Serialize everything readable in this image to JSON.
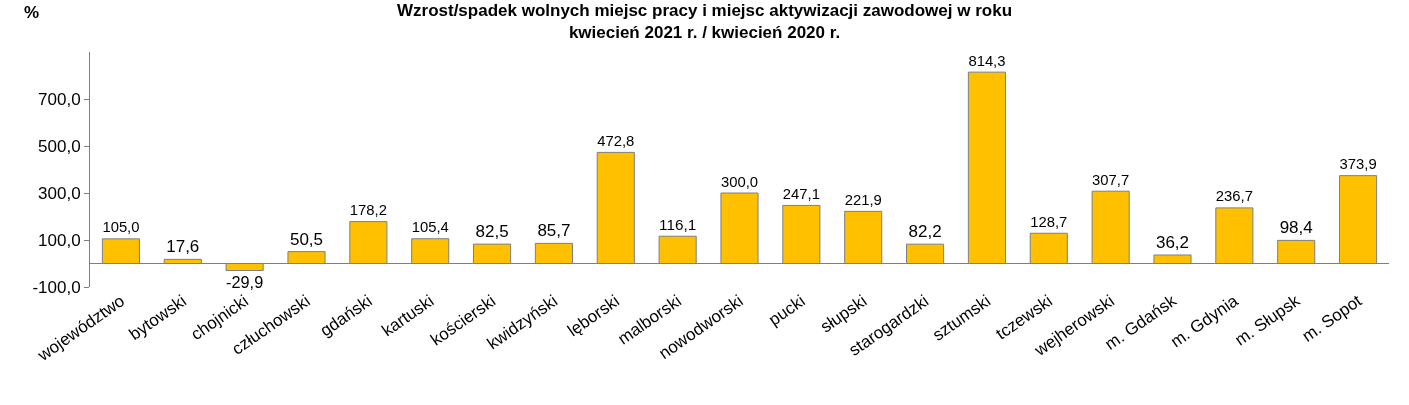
{
  "chart_data": {
    "type": "bar",
    "title": "Wzrost/spadek wolnych miejsc pracy i miejsc aktywizacji zawodowej w roku\nkwiecień 2021 r. / kwiecień 2020 r.",
    "ylabel": "%",
    "categories": [
      "województwo",
      "bytowski",
      "chojnicki",
      "człuchowski",
      "gdański",
      "kartuski",
      "kościerski",
      "kwidzyński",
      "lęborski",
      "malborski",
      "nowodworski",
      "pucki",
      "słupski",
      "starogardzki",
      "sztumski",
      "tczewski",
      "wejherowski",
      "m. Gdańsk",
      "m. Gdynia",
      "m. Słupsk",
      "m. Sopot"
    ],
    "values": [
      105.0,
      17.6,
      -29.9,
      50.5,
      178.2,
      105.4,
      82.5,
      85.7,
      472.8,
      116.1,
      300.0,
      247.1,
      221.9,
      82.2,
      814.3,
      128.7,
      307.7,
      36.2,
      236.7,
      98.4,
      373.9
    ],
    "value_labels": [
      "105,0",
      "17,6",
      "-29,9",
      "50,5",
      "178,2",
      "105,4",
      "82,5",
      "85,7",
      "472,8",
      "116,1",
      "300,0",
      "247,1",
      "221,9",
      "82,2",
      "814,3",
      "128,7",
      "307,7",
      "36,2",
      "236,7",
      "98,4",
      "373,9"
    ],
    "color": "#ffc000",
    "ylim": [
      -100,
      900
    ],
    "yticks": [
      {
        "value": -100,
        "label": "-100,0"
      },
      {
        "value": 100,
        "label": "100,0"
      },
      {
        "value": 300,
        "label": "300,0"
      },
      {
        "value": 500,
        "label": "500,0"
      },
      {
        "value": 700,
        "label": "700,0"
      }
    ],
    "grid": false,
    "legend": false
  }
}
